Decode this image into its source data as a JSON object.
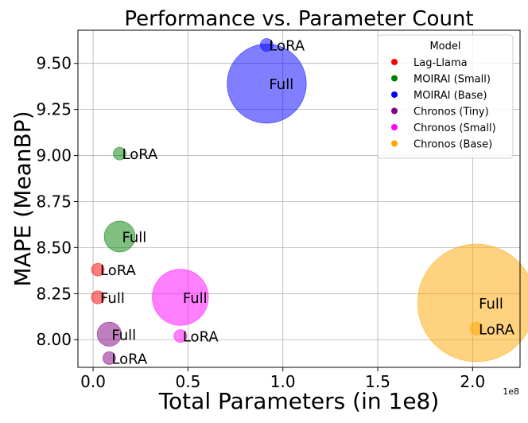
{
  "chart_data": {
    "type": "scatter",
    "title": "Performance vs. Parameter Count",
    "xlabel": "Total Parameters (in 1e8)",
    "ylabel": "MAPE (MeanBP)",
    "x_offset_label": "1e8",
    "xlim": [
      -0.08,
      2.25
    ],
    "ylim": [
      7.85,
      9.68
    ],
    "x_ticks": [
      0.0,
      0.5,
      1.0,
      1.5,
      2.0
    ],
    "x_tick_labels": [
      "0.0",
      "0.5",
      "1.0",
      "1.5",
      "2.0"
    ],
    "y_ticks": [
      8.0,
      8.25,
      8.5,
      8.75,
      9.0,
      9.25,
      9.5
    ],
    "y_tick_labels": [
      "8.00",
      "8.25",
      "8.50",
      "8.75",
      "9.00",
      "9.25",
      "9.50"
    ],
    "grid": true,
    "legend": {
      "title": "Model",
      "placement": "top-right"
    },
    "colors": {
      "Lag-Llama": "#ff0000",
      "MOIRAI (Small)": "#008000",
      "MOIRAI (Base)": "#0000ff",
      "Chronos (Tiny)": "#800080",
      "Chronos (Small)": "#ff00ff",
      "Chronos (Base)": "#ffa500"
    },
    "series": [
      {
        "name": "Lag-Llama",
        "points": [
          {
            "label": "LoRA",
            "x": 0.025,
            "y": 8.38,
            "size": 0.0013
          },
          {
            "label": "Full",
            "x": 0.025,
            "y": 8.23,
            "size": 0.025
          }
        ]
      },
      {
        "name": "MOIRAI (Small)",
        "points": [
          {
            "label": "LoRA",
            "x": 0.14,
            "y": 9.01,
            "size": 0.0013
          },
          {
            "label": "Full",
            "x": 0.14,
            "y": 8.56,
            "size": 0.14
          }
        ]
      },
      {
        "name": "MOIRAI (Base)",
        "points": [
          {
            "label": "LoRA",
            "x": 0.915,
            "y": 9.6,
            "size": 0.0026
          },
          {
            "label": "Full",
            "x": 0.915,
            "y": 9.39,
            "size": 0.915
          }
        ]
      },
      {
        "name": "Chronos (Tiny)",
        "points": [
          {
            "label": "LoRA",
            "x": 0.085,
            "y": 7.9,
            "size": 0.0011
          },
          {
            "label": "Full",
            "x": 0.085,
            "y": 8.03,
            "size": 0.085
          }
        ]
      },
      {
        "name": "Chronos (Small)",
        "points": [
          {
            "label": "LoRA",
            "x": 0.46,
            "y": 8.02,
            "size": 0.002
          },
          {
            "label": "Full",
            "x": 0.46,
            "y": 8.23,
            "size": 0.46
          }
        ]
      },
      {
        "name": "Chronos (Base)",
        "points": [
          {
            "label": "LoRA",
            "x": 2.02,
            "y": 8.06,
            "size": 0.0046
          },
          {
            "label": "Full",
            "x": 2.02,
            "y": 8.2,
            "size": 2.02
          }
        ]
      }
    ]
  }
}
